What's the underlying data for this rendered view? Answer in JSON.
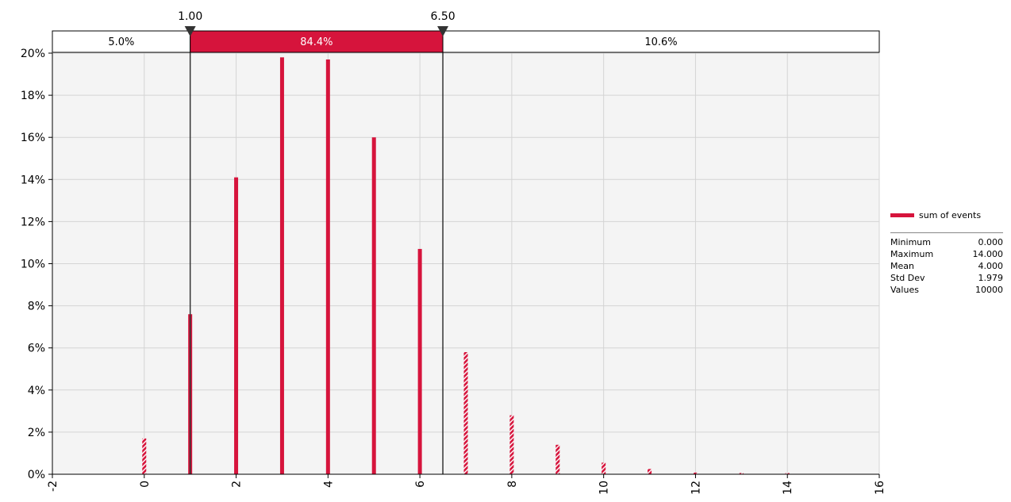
{
  "chart_data": {
    "type": "bar",
    "x": [
      0,
      1,
      2,
      3,
      4,
      5,
      6,
      7,
      8,
      9,
      10,
      11,
      12,
      13,
      14
    ],
    "values": [
      1.7,
      7.6,
      14.1,
      19.8,
      19.7,
      16.0,
      10.7,
      5.8,
      2.8,
      1.4,
      0.55,
      0.25,
      0.08,
      0.06,
      0.05
    ],
    "series": [
      {
        "name": "sum of events"
      }
    ],
    "xlim": [
      -2,
      16
    ],
    "ylim": [
      0,
      20
    ],
    "x_ticks": [
      "-2",
      "0",
      "2",
      "4",
      "6",
      "8",
      "10",
      "12",
      "14",
      "16"
    ],
    "y_ticks": [
      "0%",
      "2%",
      "4%",
      "6%",
      "8%",
      "10%",
      "12%",
      "14%",
      "16%",
      "18%",
      "20%"
    ],
    "grid": true,
    "legend_position": "right",
    "markers": [
      {
        "label": "1.00",
        "value": 1.0
      },
      {
        "label": "6.50",
        "value": 6.5
      }
    ],
    "bands": [
      {
        "label": "5.0%",
        "from": -2,
        "to": 1.0,
        "highlight": false
      },
      {
        "label": "84.4%",
        "from": 1.0,
        "to": 6.5,
        "highlight": true
      },
      {
        "label": "10.6%",
        "from": 6.5,
        "to": 16,
        "highlight": false
      }
    ],
    "stats": [
      {
        "label": "Minimum",
        "value": "0.000"
      },
      {
        "label": "Maximum",
        "value": "14.000"
      },
      {
        "label": "Mean",
        "value": "4.000"
      },
      {
        "label": "Std Dev",
        "value": "1.979"
      },
      {
        "label": "Values",
        "value": "10000"
      }
    ],
    "colors": {
      "bar": "#d6143c",
      "band_highlight": "#d6143c",
      "grid": "#d4d4d4",
      "plot_bg": "#f4f4f4",
      "marker": "#333333"
    }
  }
}
